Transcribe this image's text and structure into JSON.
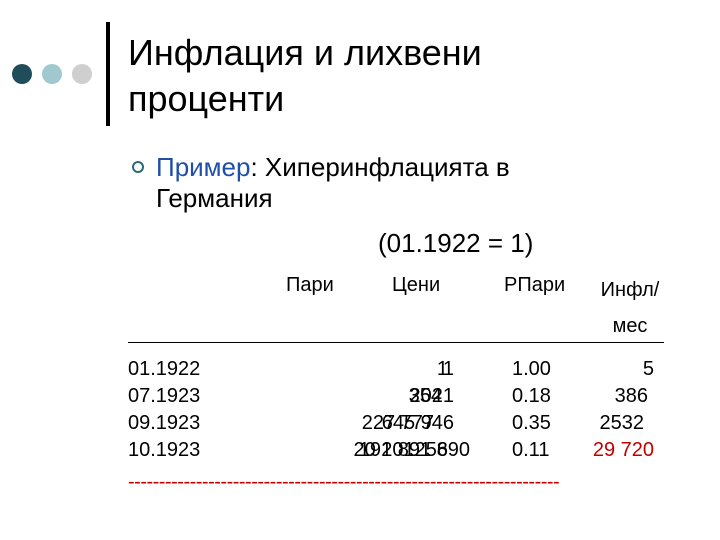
{
  "slide": {
    "title_line1": "Инфлация и лихвени",
    "title_line2": "проценти",
    "bullet": {
      "keyword": "Пример",
      "rest_line1": ": Хиперинфлацията в",
      "line2": "Германия"
    },
    "base_note": "(01.1922 = 1)",
    "columns": {
      "money": "Пари",
      "prices": "Цени",
      "real_money": "РПари",
      "inflation_line1": "Инфл/",
      "inflation_line2": "мес"
    },
    "rows": [
      {
        "date": "01.1922",
        "money": "1",
        "prices": "1",
        "real": "1.00",
        "infl": "5"
      },
      {
        "date": "07.1923",
        "money": "354",
        "prices": "2021",
        "real": "0.18",
        "infl": "386"
      },
      {
        "date": "09.1923",
        "money": "227 777",
        "prices": "645 946",
        "real": "0.35",
        "infl": "2532"
      },
      {
        "date": "10.1923",
        "money": "20 201256",
        "prices": "191 891 890",
        "real": "0.11",
        "infl": "29 720"
      }
    ],
    "dash_line": "----------------------------------------------------------------------",
    "colors": {
      "accent_dark": "#1f4e5a",
      "accent_light": "#9fc9cf",
      "keyword": "#1f4fa8",
      "highlight": "#c00000"
    }
  }
}
